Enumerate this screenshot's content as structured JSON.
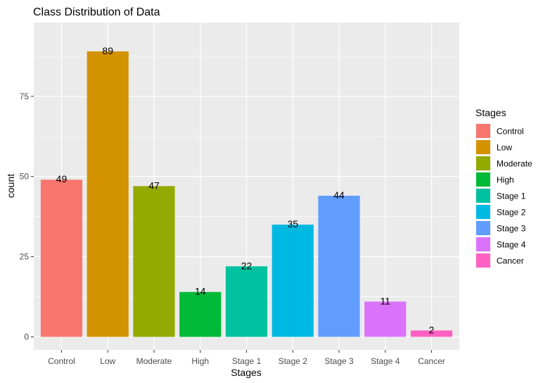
{
  "chart_data": {
    "type": "bar",
    "title": "Class Distribution of Data",
    "xlabel": "Stages",
    "ylabel": "count",
    "categories": [
      "Control",
      "Low",
      "Moderate",
      "High",
      "Stage 1",
      "Stage 2",
      "Stage 3",
      "Stage 4",
      "Cancer"
    ],
    "values": [
      49,
      89,
      47,
      14,
      22,
      35,
      44,
      11,
      2
    ],
    "colors": [
      "#F8766D",
      "#D39200",
      "#93AA00",
      "#00BA38",
      "#00C19F",
      "#00B9E3",
      "#619CFF",
      "#DB72FB",
      "#FF61C3"
    ],
    "ylim": [
      0,
      93.5
    ],
    "yticks": [
      0,
      25,
      50,
      75
    ],
    "grid": true,
    "panel_background": "#EBEBEB",
    "legend": {
      "title": "Stages",
      "placement": "right",
      "entries": [
        "Control",
        "Low",
        "Moderate",
        "High",
        "Stage 1",
        "Stage 2",
        "Stage 3",
        "Stage 4",
        "Cancer"
      ]
    }
  }
}
